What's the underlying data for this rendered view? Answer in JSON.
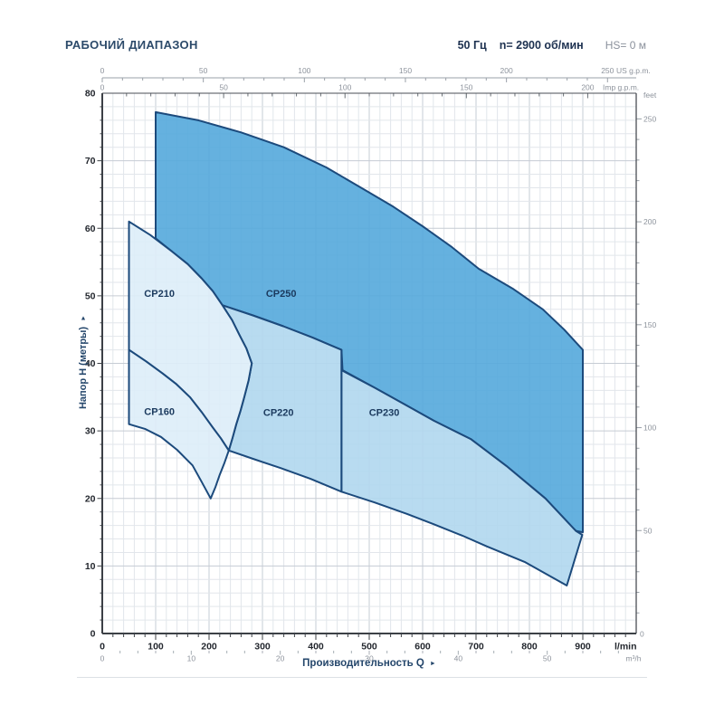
{
  "header": {
    "title": "РАБОЧИЙ ДИАПАЗОН",
    "frequency": "50 Гц",
    "speed": "n= 2900 об/мин",
    "suction": "HS= 0 м"
  },
  "icons": {
    "arrow": "►"
  },
  "chart_data": {
    "type": "area",
    "title": "РАБОЧИЙ ДИАПАЗОН",
    "xlabel": "Производительность Q",
    "ylabel": "Напор H (метры)",
    "grid": "on",
    "axes": {
      "bottom_lmin": {
        "unit": "l/min",
        "min": 0,
        "max": 1000,
        "labels": [
          0,
          100,
          200,
          300,
          400,
          500,
          600,
          700,
          800,
          900
        ],
        "minor_step": 20
      },
      "bottom_m3h": {
        "unit": "m³/h",
        "labels": [
          0,
          10,
          20,
          30,
          40,
          50
        ],
        "minor_step": 2,
        "lmin_per_unit": 16.6667
      },
      "top_usgpm": {
        "unit": "US g.p.m.",
        "labels": [
          0,
          50,
          100,
          150,
          200,
          250
        ],
        "minor_step": 10,
        "lmin_per_unit": 3.785
      },
      "top_impgpm": {
        "unit": "Imp g.p.m.",
        "labels": [
          0,
          50,
          100,
          150,
          200
        ],
        "minor_step": 10,
        "lmin_per_unit": 4.546
      },
      "left_m": {
        "unit": "метры",
        "min": 0,
        "max": 80,
        "labels": [
          0,
          10,
          20,
          30,
          40,
          50,
          60,
          70,
          80
        ],
        "minor_step": 2
      },
      "right_feet": {
        "unit": "feet",
        "labels": [
          0,
          50,
          100,
          150,
          200,
          250
        ],
        "minor_step": 10,
        "m_per_unit": 0.3048
      }
    },
    "colors": {
      "region_dark": "#54a8dc",
      "region_mid": "#b0d7ee",
      "region_light": "#ddedf8",
      "region_stroke": "#1c4a7c",
      "grid_minor": "#e2e6eb",
      "grid_major": "#c6ccd4",
      "frame": "#3c4046",
      "ruler": "#9aa0a8"
    },
    "regions": [
      {
        "name": "CP250",
        "fill": "#54a8dc",
        "label_q": 335,
        "label_h": 50.3,
        "outline_q_h": [
          [
            100,
            77.2
          ],
          [
            180,
            76
          ],
          [
            260,
            74.2
          ],
          [
            340,
            72
          ],
          [
            420,
            69
          ],
          [
            485,
            66
          ],
          [
            545,
            63.2
          ],
          [
            600,
            60.3
          ],
          [
            655,
            57.2
          ],
          [
            705,
            54
          ],
          [
            770,
            51
          ],
          [
            825,
            48
          ],
          [
            865,
            45
          ],
          [
            900,
            42
          ],
          [
            900,
            15
          ],
          [
            887,
            15.2
          ],
          [
            830,
            20
          ],
          [
            757,
            24.8
          ],
          [
            690,
            28.8
          ],
          [
            621,
            31.5
          ],
          [
            576,
            33.5
          ],
          [
            510,
            36.4
          ],
          [
            450,
            39
          ],
          [
            448,
            42
          ],
          [
            394,
            43.8
          ],
          [
            339,
            45.5
          ],
          [
            282,
            47.1
          ],
          [
            225,
            48.6
          ],
          [
            207,
            50.7
          ],
          [
            186,
            52.6
          ],
          [
            160,
            54.7
          ],
          [
            130,
            56.6
          ],
          [
            100,
            58.5
          ]
        ]
      },
      {
        "name": "CP230",
        "fill": "#b0d7ee",
        "label_q": 528,
        "label_h": 32.7,
        "outline_q_h": [
          [
            448,
            39
          ],
          [
            510,
            36.4
          ],
          [
            576,
            33.5
          ],
          [
            621,
            31.5
          ],
          [
            690,
            28.8
          ],
          [
            757,
            24.8
          ],
          [
            830,
            20
          ],
          [
            887,
            15.2
          ],
          [
            899,
            14.6
          ],
          [
            870,
            7.1
          ],
          [
            791,
            10.6
          ],
          [
            720,
            12.9
          ],
          [
            677,
            14.4
          ],
          [
            620,
            16.2
          ],
          [
            571,
            17.7
          ],
          [
            510,
            19.4
          ],
          [
            448,
            21
          ]
        ]
      },
      {
        "name": "CP220",
        "fill": "#b0d7ee",
        "label_q": 330,
        "label_h": 32.7,
        "outline_q_h": [
          [
            225,
            48.6
          ],
          [
            282,
            47.1
          ],
          [
            339,
            45.5
          ],
          [
            394,
            43.8
          ],
          [
            448,
            42
          ],
          [
            448,
            21
          ],
          [
            390,
            22.9
          ],
          [
            334,
            24.5
          ],
          [
            285,
            25.8
          ],
          [
            237,
            27.1
          ],
          [
            244,
            29
          ],
          [
            251,
            31
          ],
          [
            259,
            33
          ],
          [
            266,
            35
          ],
          [
            274,
            37.5
          ],
          [
            280,
            40
          ],
          [
            270,
            42.2
          ],
          [
            257,
            44.2
          ],
          [
            243,
            46.4
          ]
        ]
      },
      {
        "name": "CP210",
        "fill": "#ddedf8",
        "label_q": 107,
        "label_h": 50.3,
        "outline_q_h": [
          [
            50,
            42
          ],
          [
            50,
            61
          ],
          [
            90,
            59
          ],
          [
            130,
            56.6
          ],
          [
            160,
            54.7
          ],
          [
            186,
            52.6
          ],
          [
            207,
            50.7
          ],
          [
            225,
            48.6
          ],
          [
            243,
            46.4
          ],
          [
            257,
            44.2
          ],
          [
            270,
            42.2
          ],
          [
            280,
            40
          ],
          [
            274,
            37.5
          ],
          [
            266,
            35
          ],
          [
            259,
            33
          ],
          [
            251,
            31
          ],
          [
            244,
            29
          ],
          [
            237,
            27.1
          ],
          [
            222,
            28.9
          ],
          [
            207,
            30.5
          ],
          [
            186,
            32.8
          ],
          [
            164,
            35
          ],
          [
            139,
            36.9
          ],
          [
            113,
            38.5
          ],
          [
            82,
            40.3
          ]
        ]
      },
      {
        "name": "CP160",
        "fill": "#ddedf8",
        "label_q": 107,
        "label_h": 32.8,
        "outline_q_h": [
          [
            50,
            31
          ],
          [
            50,
            42
          ],
          [
            82,
            40.3
          ],
          [
            113,
            38.5
          ],
          [
            139,
            36.9
          ],
          [
            164,
            35
          ],
          [
            186,
            32.8
          ],
          [
            207,
            30.5
          ],
          [
            222,
            28.9
          ],
          [
            237,
            27.1
          ],
          [
            229,
            25.3
          ],
          [
            220,
            23.5
          ],
          [
            212,
            21.7
          ],
          [
            203,
            20
          ],
          [
            185,
            22.6
          ],
          [
            169,
            24.9
          ],
          [
            140,
            27.2
          ],
          [
            110,
            29.1
          ],
          [
            80,
            30.3
          ]
        ]
      }
    ]
  }
}
